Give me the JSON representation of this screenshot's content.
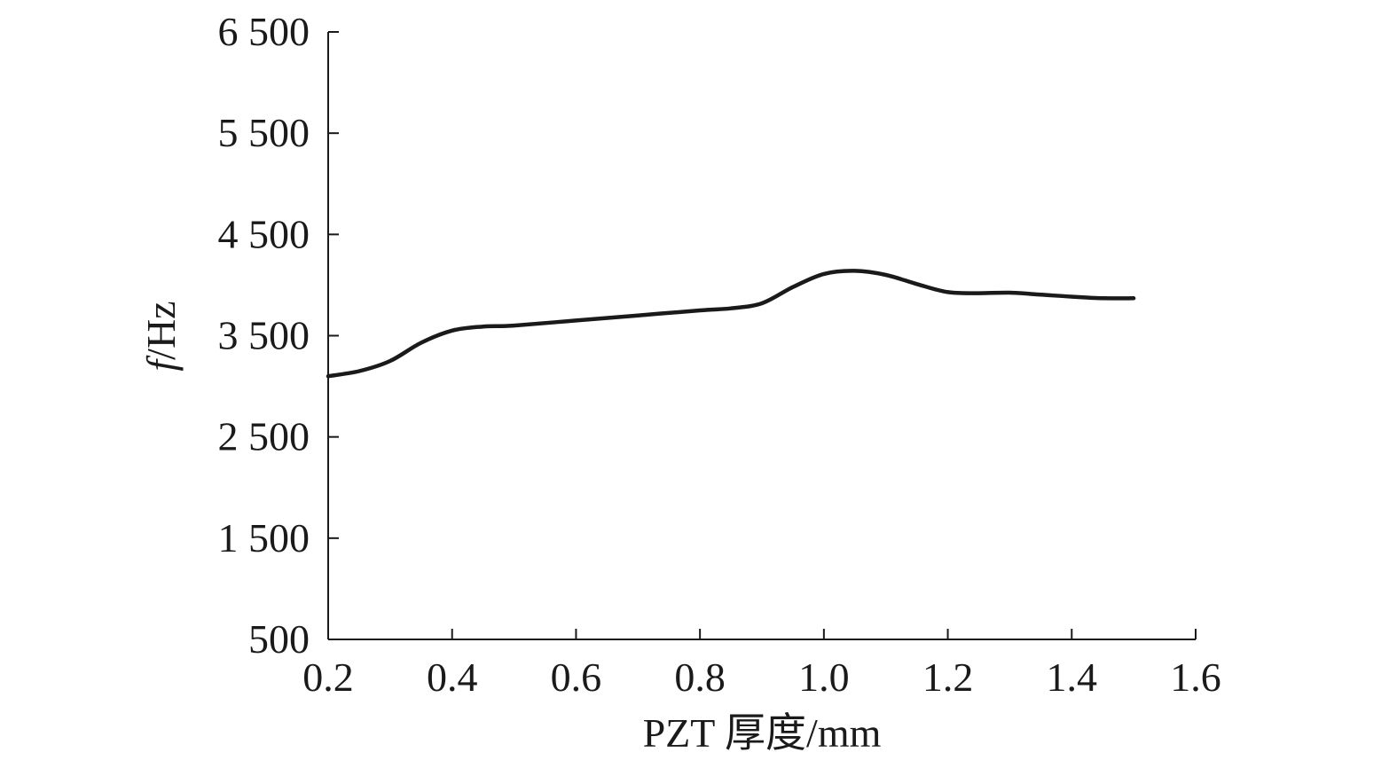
{
  "chart_data": {
    "type": "line",
    "title": "",
    "xlabel": "PZT 厚度/mm",
    "ylabel_italic": "f",
    "ylabel_unit": "/Hz",
    "xlim": [
      0.2,
      1.6
    ],
    "ylim": [
      500,
      6500
    ],
    "xticks": [
      0.2,
      0.4,
      0.6,
      0.8,
      1.0,
      1.2,
      1.4,
      1.6
    ],
    "xtick_labels": [
      "0.2",
      "0.4",
      "0.6",
      "0.8",
      "1.0",
      "1.2",
      "1.4",
      "1.6"
    ],
    "yticks": [
      500,
      1500,
      2500,
      3500,
      4500,
      5500,
      6500
    ],
    "ytick_labels": [
      "500",
      "1 500",
      "2 500",
      "3 500",
      "4 500",
      "5 500",
      "6 500"
    ],
    "grid": false,
    "series": [
      {
        "color": "#1a1a1a",
        "x": [
          0.2,
          0.25,
          0.3,
          0.35,
          0.4,
          0.45,
          0.5,
          0.6,
          0.7,
          0.8,
          0.85,
          0.9,
          0.95,
          1.0,
          1.05,
          1.1,
          1.15,
          1.2,
          1.25,
          1.3,
          1.35,
          1.4,
          1.45,
          1.5
        ],
        "y": [
          3100,
          3150,
          3250,
          3430,
          3550,
          3590,
          3600,
          3650,
          3700,
          3750,
          3770,
          3820,
          3980,
          4110,
          4140,
          4100,
          4010,
          3930,
          3920,
          3925,
          3905,
          3885,
          3870,
          3870
        ]
      }
    ]
  }
}
